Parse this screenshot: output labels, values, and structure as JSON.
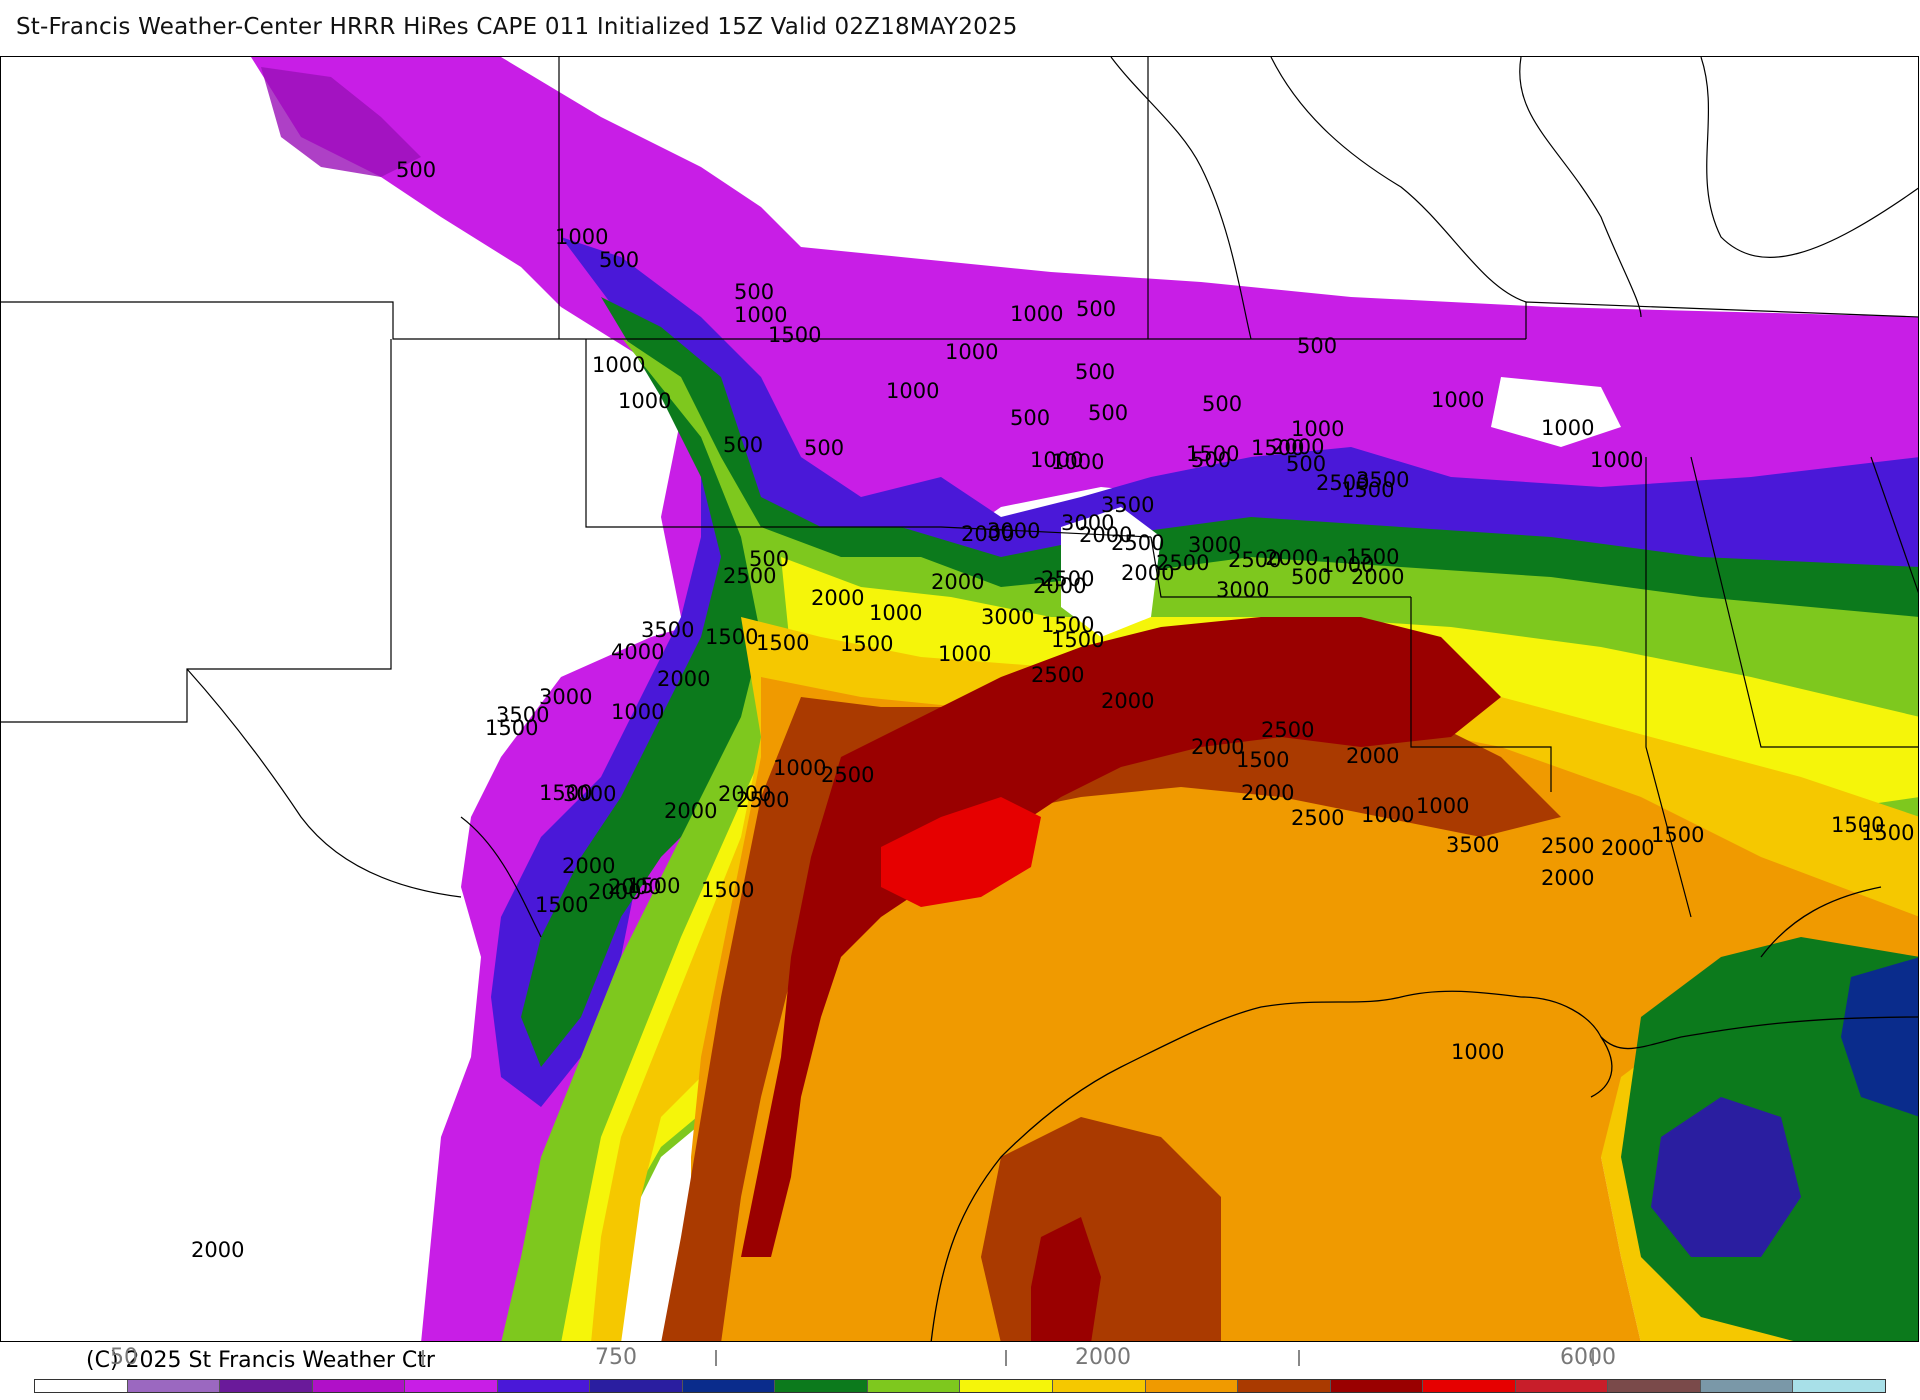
{
  "header": {
    "title": "St-Francis Weather-Center HRRR HiRes CAPE  011 Initialized  15Z Valid 02Z18MAY2025"
  },
  "footer": {
    "copyright": "(C) 2025 St Francis Weather Ctr"
  },
  "legend": {
    "tick_labels": [
      "50",
      "750",
      "2000",
      "6000"
    ],
    "colors": [
      "#ffffff",
      "#9b68c0",
      "#6a1a9a",
      "#b010c8",
      "#c81ee6",
      "#4a18d8",
      "#2a1ea0",
      "#0a2c8c",
      "#0c7a1c",
      "#7ec81e",
      "#f5f50a",
      "#f5c800",
      "#f09a00",
      "#aa3a00",
      "#9a0000",
      "#e60000",
      "#c81e2a",
      "#7a4a4a",
      "#7a98a8",
      "#a8e0e8"
    ]
  },
  "map": {
    "colors": {
      "violet": "#c81ee6",
      "dark_violet": "#9a10b8",
      "blue_violet": "#4a18d8",
      "navy": "#0a2c8c",
      "green": "#0c7a1c",
      "light_green": "#7ec81e",
      "yellow": "#f5f50a",
      "gold": "#f5c800",
      "orange": "#f09a00",
      "brown": "#aa3a00",
      "dark_red": "#9a0000",
      "red": "#e60000"
    },
    "contour_labels": [
      "500",
      "1000",
      "500",
      "500",
      "1000",
      "1500",
      "1000",
      "1000",
      "1000",
      "500",
      "1000",
      "500",
      "500",
      "500",
      "500",
      "1000",
      "500",
      "1000",
      "1000",
      "500",
      "500",
      "1000",
      "1500",
      "1000",
      "1000",
      "500",
      "2000",
      "1500",
      "500",
      "2500",
      "3500",
      "1500",
      "1000",
      "3000",
      "3500",
      "2500",
      "2000",
      "2500",
      "3000",
      "2500",
      "2000",
      "1000",
      "1500",
      "500",
      "2000",
      "3000",
      "2500",
      "2000",
      "3000",
      "2000",
      "2000",
      "3000",
      "1500",
      "1500",
      "2000",
      "2000",
      "1000",
      "500",
      "2500",
      "3500",
      "4000",
      "3000",
      "3500",
      "1500",
      "2500",
      "1000",
      "2500",
      "2000",
      "2000",
      "1500",
      "2000",
      "1500",
      "1500",
      "2000",
      "2000",
      "3000",
      "1500",
      "1000",
      "2000",
      "1500",
      "1500",
      "1500",
      "1000",
      "2500",
      "2000",
      "2500",
      "2000",
      "1500",
      "2000",
      "2000",
      "2500",
      "1000",
      "1000",
      "3500",
      "2500",
      "2000",
      "2000",
      "1500",
      "1500",
      "1500",
      "1000",
      "2000"
    ]
  }
}
